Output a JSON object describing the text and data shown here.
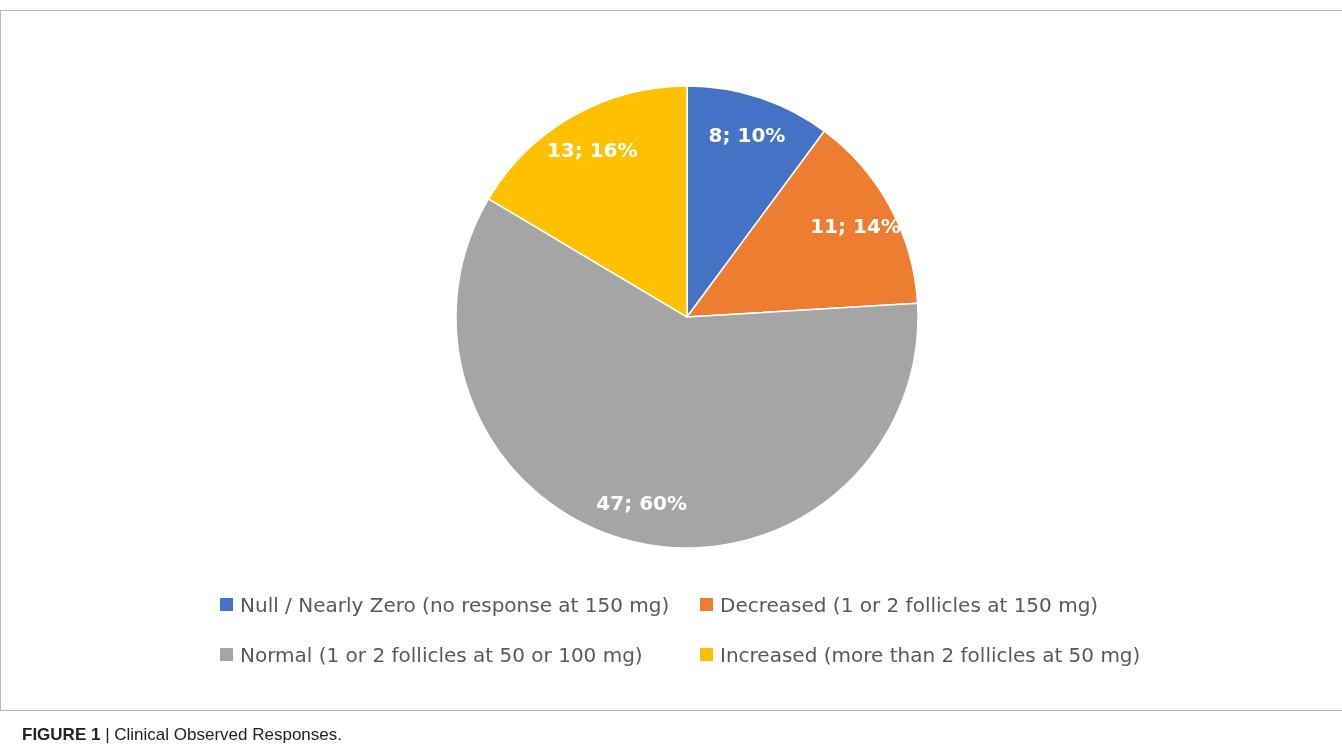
{
  "chart_data": {
    "type": "pie",
    "categories": [
      "Null / Nearly Zero (no response at 150 mg)",
      "Decreased (1 or 2 follicles at 150 mg)",
      "Normal (1 or 2 follicles at 50 or 100 mg)",
      "Increased (more than 2 follicles at 50 mg)"
    ],
    "values": [
      8,
      11,
      47,
      13
    ],
    "colors": [
      "#4472c4",
      "#ed7d31",
      "#a5a5a5",
      "#ffc000"
    ],
    "value_labels": [
      "8; 10%",
      "11; 14%",
      "47; 60%",
      "13; 16%"
    ],
    "legend": "bottom",
    "annotations": [
      "FIGURE 1 | Clinical Observed Responses."
    ]
  }
}
